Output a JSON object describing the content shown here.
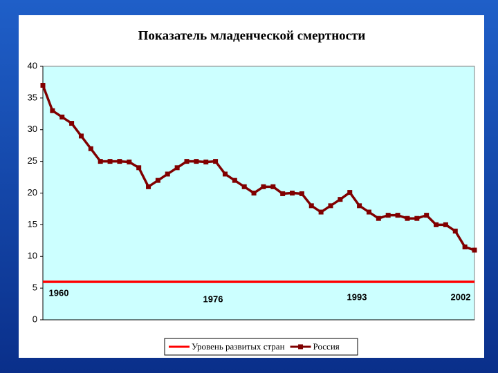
{
  "chart_data": {
    "type": "line",
    "title": "Показатель младенческой смертности",
    "categories": [
      null,
      null,
      null,
      null,
      null,
      null,
      null,
      null,
      null,
      null,
      null,
      null,
      null,
      null,
      null,
      null,
      null,
      null,
      null,
      null,
      null,
      null,
      null,
      null,
      null,
      null,
      null,
      null,
      null,
      null,
      null,
      null,
      null,
      null,
      null,
      null,
      null,
      null,
      null,
      null,
      null,
      null,
      null,
      null,
      null,
      null
    ],
    "series": [
      {
        "name": "Уровень развитых стран",
        "color": "#ff0000",
        "marker": false,
        "values": [
          6,
          6,
          6,
          6,
          6,
          6,
          6,
          6,
          6,
          6,
          6,
          6,
          6,
          6,
          6,
          6,
          6,
          6,
          6,
          6,
          6,
          6,
          6,
          6,
          6,
          6,
          6,
          6,
          6,
          6,
          6,
          6,
          6,
          6,
          6,
          6,
          6,
          6,
          6,
          6,
          6,
          6,
          6,
          6,
          6,
          6
        ]
      },
      {
        "name": "Россия",
        "color": "#800000",
        "marker": true,
        "values": [
          37,
          33,
          32,
          31,
          29,
          27,
          25,
          25,
          25,
          24.9,
          24,
          21,
          22,
          23,
          24,
          25,
          25,
          24.9,
          25,
          23,
          22,
          21,
          20,
          21,
          21,
          19.9,
          20,
          19.9,
          18,
          17,
          18,
          19,
          20.1,
          18,
          17,
          16,
          16.5,
          16.5,
          16,
          16,
          16.5,
          15,
          15,
          14,
          11.5,
          11
        ]
      }
    ],
    "annotations": [
      "1960",
      "1976",
      "1993",
      "2002"
    ],
    "ylim": [
      0,
      40
    ],
    "yticks": [
      0,
      5,
      10,
      15,
      20,
      25,
      30,
      35,
      40
    ],
    "grid": false,
    "legend": "bottom",
    "plot_color": "#ccffff"
  }
}
